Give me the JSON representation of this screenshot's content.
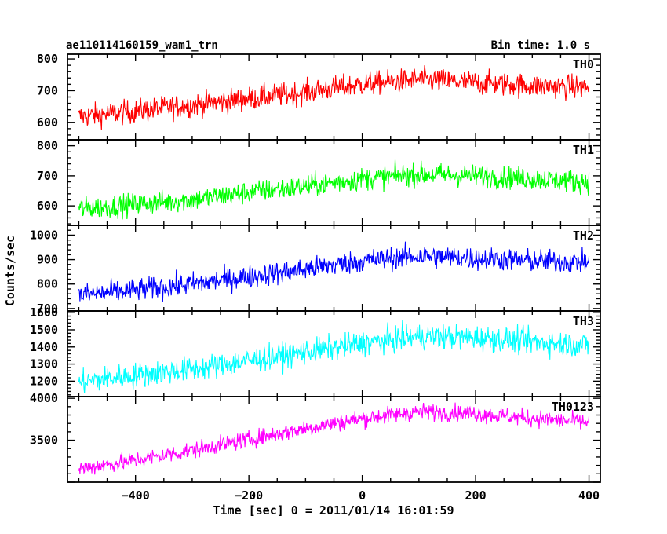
{
  "chart_data": {
    "type": "line",
    "title_left": "ae110114160159_wam1_trn",
    "title_right": "Bin time: 1.0 s",
    "xlabel": "Time [sec] 0 = 2011/01/14 16:01:59",
    "ylabel": "Counts/sec",
    "xlim": [
      -520,
      420
    ],
    "x_ticks": [
      -400,
      -200,
      0,
      200,
      400
    ],
    "x_tick_labels": [
      "−400",
      "−200",
      "0",
      "200",
      "400"
    ],
    "panels": [
      {
        "name": "TH0",
        "color": "#ff0000",
        "ylim": [
          545,
          815
        ],
        "y_ticks": [
          600,
          700,
          800
        ],
        "y_tick_labels": [
          "600",
          "700",
          "800"
        ],
        "x": [
          -500,
          -400,
          -300,
          -200,
          -100,
          0,
          100,
          200,
          300,
          400
        ],
        "trend": [
          618,
          635,
          655,
          675,
          695,
          720,
          735,
          725,
          715,
          710
        ],
        "noise": 28
      },
      {
        "name": "TH1",
        "color": "#00ff00",
        "ylim": [
          535,
          820
        ],
        "y_ticks": [
          600,
          700,
          800
        ],
        "y_tick_labels": [
          "600",
          "700",
          "800"
        ],
        "x": [
          -500,
          -400,
          -300,
          -200,
          -100,
          0,
          100,
          200,
          300,
          400
        ],
        "trend": [
          590,
          605,
          620,
          645,
          665,
          690,
          705,
          700,
          690,
          680
        ],
        "noise": 28
      },
      {
        "name": "TH2",
        "color": "#0000ff",
        "ylim": [
          690,
          1040
        ],
        "y_ticks": [
          700,
          800,
          900,
          1000
        ],
        "y_tick_labels": [
          "700",
          "800",
          "900",
          "1000"
        ],
        "x": [
          -500,
          -400,
          -300,
          -200,
          -100,
          0,
          100,
          200,
          300,
          400
        ],
        "trend": [
          755,
          775,
          800,
          830,
          860,
          895,
          915,
          905,
          895,
          890
        ],
        "noise": 35
      },
      {
        "name": "TH3",
        "color": "#00ffff",
        "ylim": [
          1110,
          1610
        ],
        "y_ticks": [
          1200,
          1300,
          1400,
          1500,
          1600
        ],
        "y_tick_labels": [
          "1200",
          "1300",
          "1400",
          "1500",
          "1600"
        ],
        "x": [
          -500,
          -400,
          -300,
          -200,
          -100,
          0,
          100,
          200,
          300,
          400
        ],
        "trend": [
          1195,
          1235,
          1270,
          1320,
          1370,
          1420,
          1460,
          1455,
          1430,
          1410
        ],
        "noise": 55
      },
      {
        "name": "TH0123",
        "color": "#ff00ff",
        "ylim": [
          3000,
          4020
        ],
        "y_ticks": [
          3500,
          4000
        ],
        "y_tick_labels": [
          "3500",
          "4000"
        ],
        "x": [
          -500,
          -400,
          -300,
          -200,
          -100,
          0,
          100,
          200,
          300,
          400
        ],
        "trend": [
          3160,
          3260,
          3380,
          3510,
          3640,
          3760,
          3840,
          3820,
          3760,
          3710
        ],
        "noise": 75
      }
    ]
  }
}
